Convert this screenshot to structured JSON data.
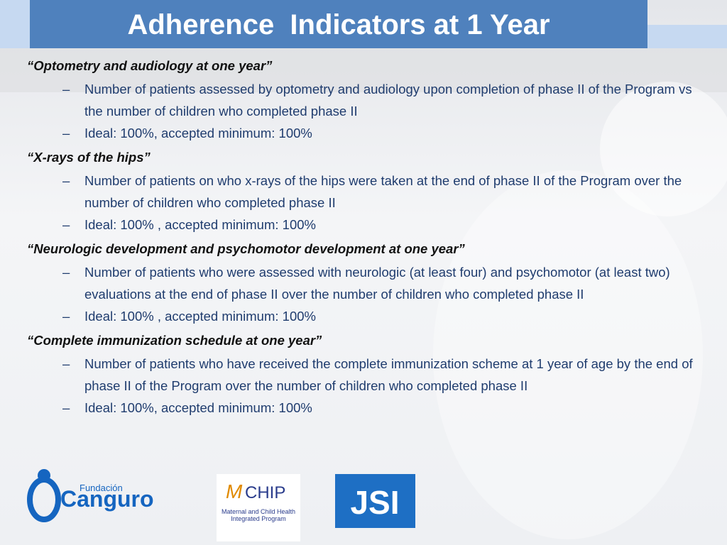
{
  "title": "Adherence  Indicators at 1 Year",
  "sections": [
    {
      "heading": "“Optometry and audiology at one year”",
      "bullets": [
        "Number of patients assessed by optometry and audiology upon completion of phase II of the Program vs the number of children who completed phase II",
        "Ideal: 100%, accepted minimum: 100%"
      ]
    },
    {
      "heading": "“X-rays of the hips”",
      "bullets": [
        "Number of patients on who x-rays of the hips were taken at the end of phase II of the Program over the number of children who completed phase II",
        "Ideal: 100% , accepted minimum: 100%"
      ]
    },
    {
      "heading": "“Neurologic development and psychomotor development at one year”",
      "bullets": [
        "Number of patients who were assessed with neurologic (at least four) and psychomotor (at least two) evaluations at the end of phase II over the number of children who completed phase II",
        "Ideal: 100% , accepted minimum: 100%"
      ]
    },
    {
      "heading": "“Complete immunization schedule at one year”",
      "bullets": [
        "Number of patients who have received the complete immunization scheme at 1 year of age by the end of phase II of the Program over the number of children who completed phase II",
        "Ideal: 100%, accepted minimum: 100%"
      ]
    }
  ],
  "logos": {
    "canguro_top": "Fundación",
    "canguro_main": "Canguro",
    "mchip": "CHIP",
    "mchip_sub": "Maternal and Child Health Integrated Program",
    "jsi": "JSI"
  }
}
